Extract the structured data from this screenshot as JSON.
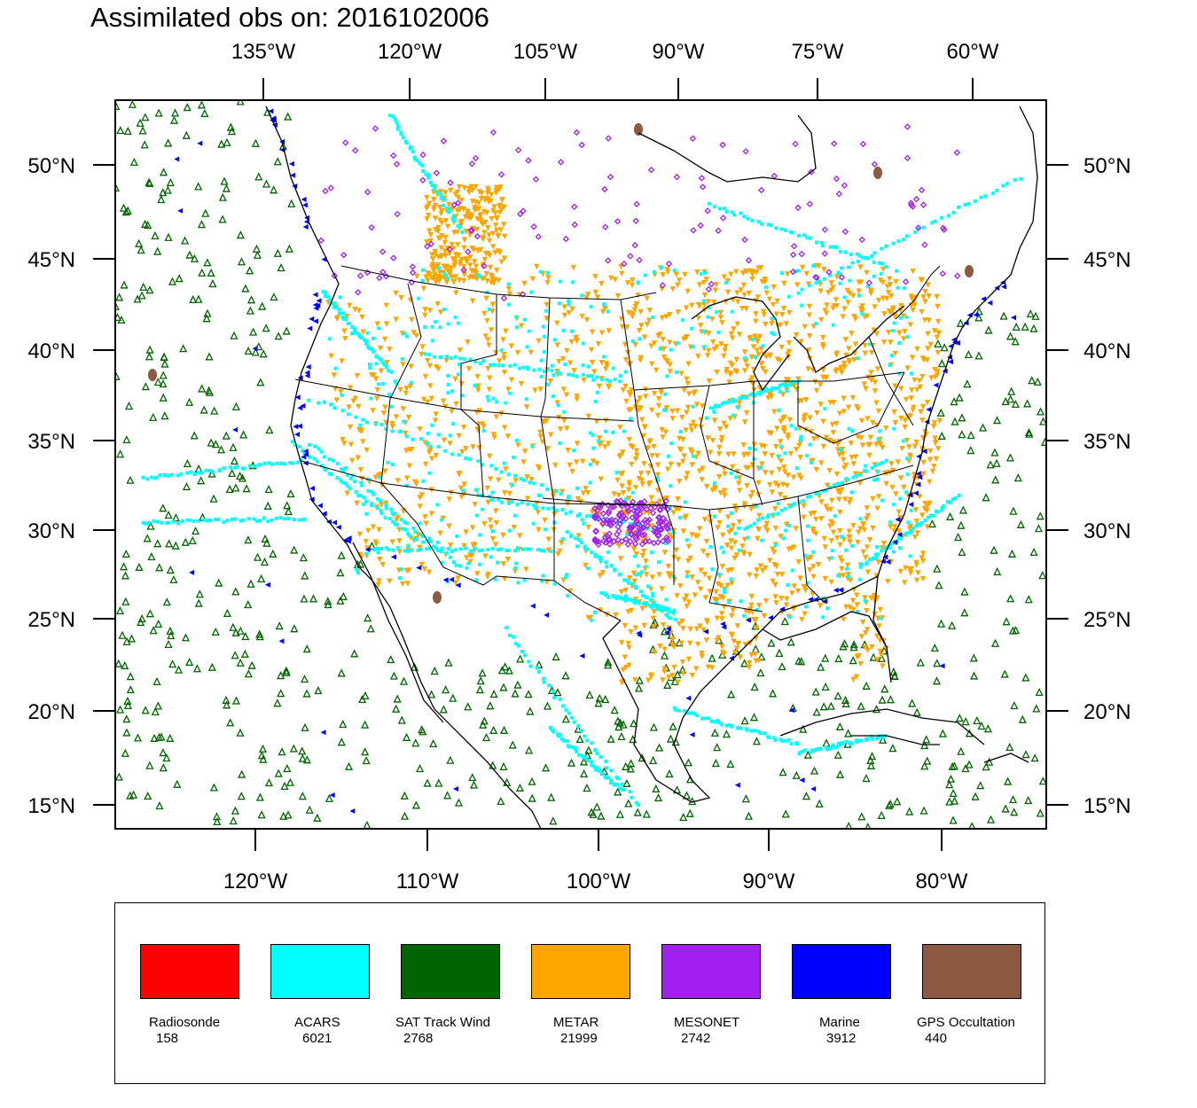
{
  "title": "Assimilated obs on: 2016102006",
  "map": {
    "top_lon_labels": [
      "135°W",
      "120°W",
      "105°W",
      "90°W",
      "75°W",
      "60°W"
    ],
    "bottom_lon_labels": [
      "120°W",
      "110°W",
      "100°W",
      "90°W",
      "80°W"
    ],
    "lat_labels": [
      "50°N",
      "45°N",
      "40°N",
      "35°N",
      "30°N",
      "25°N",
      "20°N",
      "15°N"
    ],
    "projection": "lambert-conformal",
    "lat_range": [
      14,
      53
    ],
    "lon_range": [
      -128,
      -74
    ]
  },
  "legend": {
    "items": [
      {
        "label": "Radiosonde",
        "count": "158",
        "color": "#ff0000",
        "marker": "none"
      },
      {
        "label": "ACARS",
        "count": "6021",
        "color": "#00ffff",
        "marker": "square"
      },
      {
        "label": "SAT Track Wind",
        "count": "2768",
        "color": "#006400",
        "marker": "triangle-up"
      },
      {
        "label": "METAR",
        "count": "21999",
        "color": "#ffa500",
        "marker": "triangle-down"
      },
      {
        "label": "MESONET",
        "count": "2742",
        "color": "#a020f0",
        "marker": "diamond"
      },
      {
        "label": "Marine",
        "count": "3912",
        "color": "#0000ff",
        "marker": "triangle-left"
      },
      {
        "label": "GPS Occultation",
        "count": "440",
        "color": "#8b5a40",
        "marker": "blob"
      }
    ]
  }
}
